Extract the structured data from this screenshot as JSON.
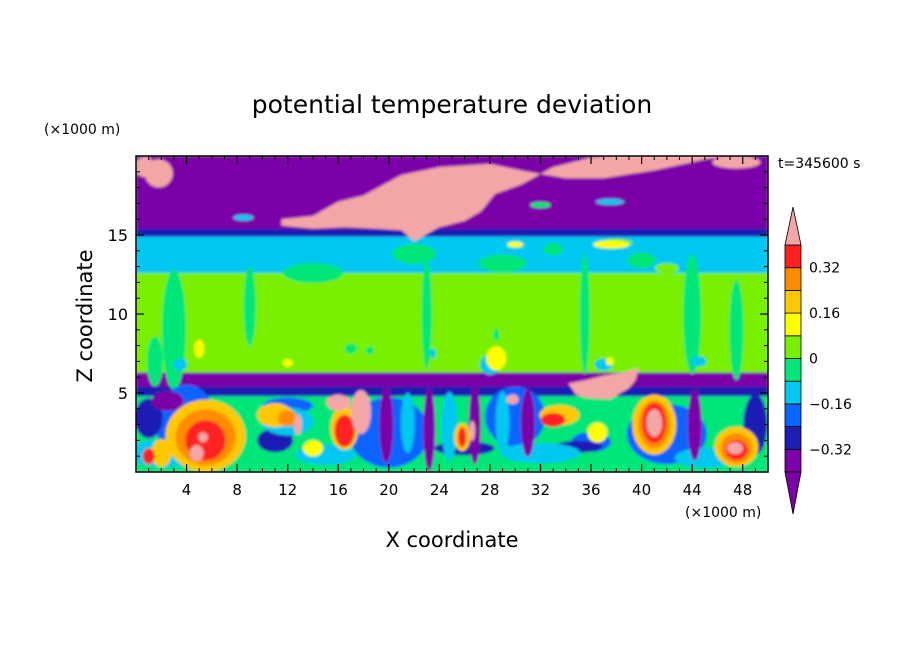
{
  "chart_data": {
    "type": "heatmap",
    "title": "potential temperature deviation",
    "xlabel": "X coordinate",
    "ylabel": "Z coordinate",
    "x_unit": "(×1000 m)",
    "z_unit": "(×1000 m)",
    "time_label": "t=345600 s",
    "xlim": [
      0,
      50
    ],
    "zlim": [
      0,
      20
    ],
    "x_ticks": [
      "4",
      "8",
      "12",
      "16",
      "20",
      "24",
      "28",
      "32",
      "36",
      "40",
      "44",
      "48"
    ],
    "z_ticks": [
      "5",
      "10",
      "15"
    ],
    "colorbar": {
      "levels": [
        -0.4,
        -0.32,
        -0.24,
        -0.16,
        -0.08,
        0,
        0.08,
        0.16,
        0.24,
        0.32,
        0.4
      ],
      "colors": [
        "#7b00a8",
        "#1e1eb4",
        "#0a64ff",
        "#00c8f0",
        "#00e678",
        "#78f000",
        "#ffff00",
        "#ffc800",
        "#ff8c00",
        "#ff2020",
        "#f4a6a6"
      ],
      "labels": [
        "0.32",
        "0.16",
        "0",
        "−0.16",
        "−0.32"
      ],
      "extend": "both"
    },
    "features": [
      {
        "kind": "stratosphere",
        "z_range": [
          15.3,
          20
        ],
        "value": -0.4
      },
      {
        "kind": "tropopause-band",
        "z_range": [
          14.8,
          15.3
        ],
        "value": -0.32
      },
      {
        "kind": "upper-troposphere",
        "z_range": [
          12.5,
          14.8
        ],
        "value": -0.12
      },
      {
        "kind": "mid-troposphere",
        "z_range": [
          6.2,
          12.5
        ],
        "value": 0.04
      },
      {
        "kind": "inversion-band",
        "z_range": [
          5.3,
          6.2
        ],
        "value": -0.4
      },
      {
        "kind": "boundary-layer",
        "z_range": [
          0,
          5.3
        ],
        "value": "mixed"
      }
    ]
  }
}
